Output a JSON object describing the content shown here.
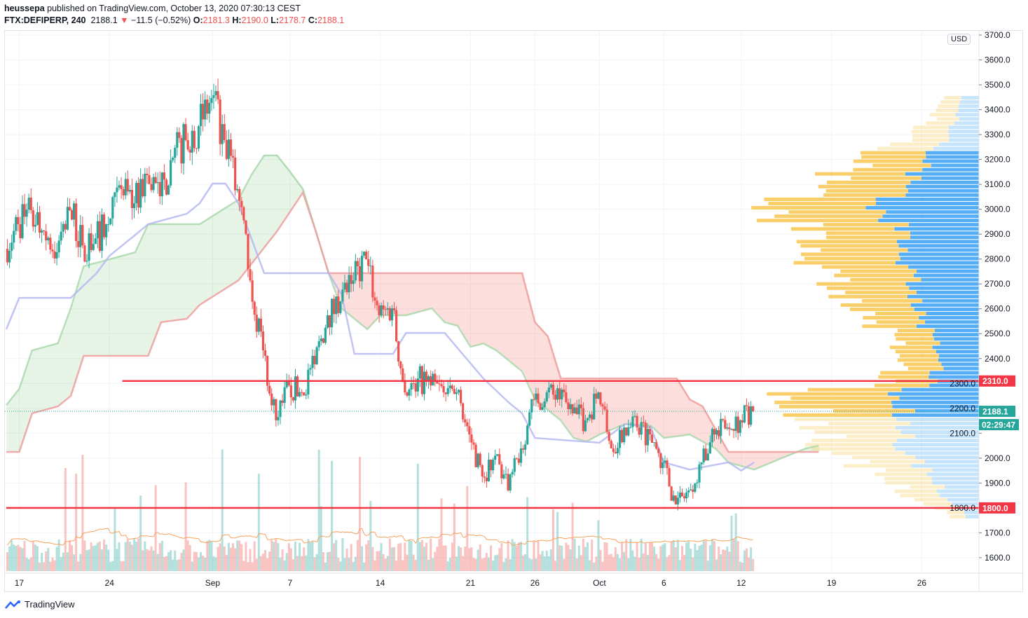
{
  "header": {
    "author": "heussepa",
    "published": "published on TradingView.com, October 13, 2020 07:30:13 CEST",
    "symbol": "FTX:DEFIPERP, 240",
    "last": "2188.1",
    "change": "−11.5 (−0.52%)",
    "o_label": "O:",
    "o": "2181.3",
    "h_label": "H:",
    "h": "2190.0",
    "l_label": "L:",
    "l": "2178.7",
    "c_label": "C:",
    "c": "2188.1"
  },
  "footer": {
    "brand": "TradingView"
  },
  "chart_data": {
    "type": "candlestick",
    "interval": "240",
    "currency": "USD",
    "ylim": [
      1550,
      3720
    ],
    "yticks": [
      1600,
      1700,
      1800,
      1900,
      2000,
      2100,
      2200,
      2300,
      2400,
      2500,
      2600,
      2700,
      2800,
      2900,
      3000,
      3100,
      3200,
      3300,
      3400,
      3500,
      3600,
      3700
    ],
    "xticks": [
      {
        "date": "2020-08-17",
        "label": "17"
      },
      {
        "date": "2020-08-24",
        "label": "24"
      },
      {
        "date": "2020-09-01",
        "label": "Sep"
      },
      {
        "date": "2020-09-07",
        "label": "7"
      },
      {
        "date": "2020-09-14",
        "label": "14"
      },
      {
        "date": "2020-09-21",
        "label": "21"
      },
      {
        "date": "2020-09-26",
        "label": "26"
      },
      {
        "date": "2020-10-01",
        "label": "Oct"
      },
      {
        "date": "2020-10-06",
        "label": "6"
      },
      {
        "date": "2020-10-12",
        "label": "12"
      },
      {
        "date": "2020-10-19",
        "label": "19"
      },
      {
        "date": "2020-10-26",
        "label": "26"
      }
    ],
    "daily_close": [
      [
        "2020-08-16",
        2841
      ],
      [
        "2020-08-17",
        2940
      ],
      [
        "2020-08-18",
        2996
      ],
      [
        "2020-08-19",
        2912
      ],
      [
        "2020-08-20",
        2827
      ],
      [
        "2020-08-21",
        2996
      ],
      [
        "2020-08-22",
        2855
      ],
      [
        "2020-08-23",
        2883
      ],
      [
        "2020-08-24",
        2940
      ],
      [
        "2020-08-25",
        3081
      ],
      [
        "2020-08-26",
        3024
      ],
      [
        "2020-08-27",
        3137
      ],
      [
        "2020-08-28",
        3052
      ],
      [
        "2020-08-29",
        3207
      ],
      [
        "2020-08-30",
        3278
      ],
      [
        "2020-08-31",
        3334
      ],
      [
        "2020-09-01",
        3447
      ],
      [
        "2020-09-02",
        3278
      ],
      [
        "2020-09-03",
        3081
      ],
      [
        "2020-09-04",
        2714
      ],
      [
        "2020-09-05",
        2433
      ],
      [
        "2020-09-06",
        2152
      ],
      [
        "2020-09-07",
        2292
      ],
      [
        "2020-09-08",
        2264
      ],
      [
        "2020-09-09",
        2377
      ],
      [
        "2020-09-10",
        2574
      ],
      [
        "2020-09-11",
        2630
      ],
      [
        "2020-09-12",
        2714
      ],
      [
        "2020-09-13",
        2799
      ],
      [
        "2020-09-14",
        2574
      ],
      [
        "2020-09-15",
        2602
      ],
      [
        "2020-09-16",
        2264
      ],
      [
        "2020-09-17",
        2320
      ],
      [
        "2020-09-18",
        2292
      ],
      [
        "2020-09-19",
        2264
      ],
      [
        "2020-09-20",
        2264
      ],
      [
        "2020-09-21",
        2095
      ],
      [
        "2020-09-22",
        1926
      ],
      [
        "2020-09-23",
        2010
      ],
      [
        "2020-09-24",
        1870
      ],
      [
        "2020-09-25",
        2039
      ],
      [
        "2020-09-26",
        2236
      ],
      [
        "2020-09-27",
        2264
      ],
      [
        "2020-09-28",
        2236
      ],
      [
        "2020-09-29",
        2180
      ],
      [
        "2020-09-30",
        2152
      ],
      [
        "2020-10-01",
        2264
      ],
      [
        "2020-10-02",
        2039
      ],
      [
        "2020-10-03",
        2123
      ],
      [
        "2020-10-04",
        2123
      ],
      [
        "2020-10-05",
        2095
      ],
      [
        "2020-10-06",
        1983
      ],
      [
        "2020-10-07",
        1814
      ],
      [
        "2020-10-08",
        1870
      ],
      [
        "2020-10-09",
        1983
      ],
      [
        "2020-10-10",
        2095
      ],
      [
        "2020-10-11",
        2123
      ],
      [
        "2020-10-12",
        2152
      ],
      [
        "2020-10-13",
        2188.1
      ]
    ],
    "ichimoku": {
      "base_line": [
        [
          "2020-08-16",
          2518
        ],
        [
          "2020-08-17",
          2644
        ],
        [
          "2020-08-21",
          2644
        ],
        [
          "2020-08-23",
          2743
        ],
        [
          "2020-08-24",
          2813
        ],
        [
          "2020-08-26",
          2897
        ],
        [
          "2020-08-27",
          2940
        ],
        [
          "2020-08-30",
          2982
        ],
        [
          "2020-08-31",
          3024
        ],
        [
          "2020-09-01",
          3103
        ],
        [
          "2020-09-02",
          3103
        ],
        [
          "2020-09-03",
          3024
        ],
        [
          "2020-09-05",
          2743
        ],
        [
          "2020-09-10",
          2743
        ],
        [
          "2020-09-11",
          2658
        ],
        [
          "2020-09-12",
          2419
        ],
        [
          "2020-09-15",
          2419
        ],
        [
          "2020-09-16",
          2503
        ],
        [
          "2020-09-19",
          2503
        ],
        [
          "2020-09-22",
          2320
        ],
        [
          "2020-09-24",
          2222
        ],
        [
          "2020-09-25",
          2180
        ],
        [
          "2020-09-26",
          2081
        ],
        [
          "2020-10-01",
          2062
        ],
        [
          "2020-10-03",
          2137
        ],
        [
          "2020-10-05",
          2123
        ],
        [
          "2020-10-06",
          1983
        ],
        [
          "2020-10-08",
          1954
        ],
        [
          "2020-10-11",
          1983
        ],
        [
          "2020-10-12",
          1950
        ],
        [
          "2020-10-13",
          1983
        ]
      ],
      "span_a": [
        [
          "2020-08-16",
          2213
        ],
        [
          "2020-08-17",
          2278
        ],
        [
          "2020-08-18",
          2433
        ],
        [
          "2020-08-19",
          2447
        ],
        [
          "2020-08-20",
          2461
        ],
        [
          "2020-08-21",
          2602
        ],
        [
          "2020-08-22",
          2771
        ],
        [
          "2020-08-24",
          2799
        ],
        [
          "2020-08-26",
          2827
        ],
        [
          "2020-08-27",
          2940
        ],
        [
          "2020-08-31",
          2940
        ],
        [
          "2020-09-03",
          3038
        ],
        [
          "2020-09-04",
          3137
        ],
        [
          "2020-09-05",
          3216
        ],
        [
          "2020-09-06",
          3216
        ],
        [
          "2020-09-07",
          3151
        ],
        [
          "2020-09-08",
          3081
        ],
        [
          "2020-09-09",
          2912
        ],
        [
          "2020-09-10",
          2743
        ],
        [
          "2020-09-11",
          2602
        ],
        [
          "2020-09-13",
          2518
        ],
        [
          "2020-09-14",
          2574
        ],
        [
          "2020-09-16",
          2574
        ],
        [
          "2020-09-18",
          2602
        ],
        [
          "2020-09-19",
          2546
        ],
        [
          "2020-09-20",
          2532
        ],
        [
          "2020-09-21",
          2447
        ],
        [
          "2020-09-22",
          2461
        ],
        [
          "2020-09-23",
          2433
        ],
        [
          "2020-09-25",
          2349
        ],
        [
          "2020-09-26",
          2236
        ],
        [
          "2020-09-28",
          2152
        ],
        [
          "2020-09-29",
          2081
        ],
        [
          "2020-09-30",
          2067
        ],
        [
          "2020-10-01",
          2095
        ],
        [
          "2020-10-03",
          2137
        ],
        [
          "2020-10-05",
          2130
        ],
        [
          "2020-10-06",
          2081
        ],
        [
          "2020-10-08",
          2095
        ],
        [
          "2020-10-10",
          2039
        ],
        [
          "2020-10-11",
          1983
        ],
        [
          "2020-10-13",
          1954
        ],
        [
          "2020-10-15",
          1997
        ],
        [
          "2020-10-17",
          2039
        ],
        [
          "2020-10-18",
          2050
        ]
      ],
      "span_b": [
        [
          "2020-08-16",
          2025
        ],
        [
          "2020-08-17",
          2025
        ],
        [
          "2020-08-18",
          2180
        ],
        [
          "2020-08-20",
          2208
        ],
        [
          "2020-08-21",
          2250
        ],
        [
          "2020-08-22",
          2411
        ],
        [
          "2020-08-27",
          2411
        ],
        [
          "2020-08-28",
          2546
        ],
        [
          "2020-08-30",
          2560
        ],
        [
          "2020-08-31",
          2616
        ],
        [
          "2020-09-03",
          2714
        ],
        [
          "2020-09-06",
          2912
        ],
        [
          "2020-09-08",
          3067
        ],
        [
          "2020-09-09",
          2912
        ],
        [
          "2020-09-10",
          2743
        ],
        [
          "2020-09-25",
          2743
        ],
        [
          "2020-09-26",
          2546
        ],
        [
          "2020-09-27",
          2489
        ],
        [
          "2020-09-28",
          2320
        ],
        [
          "2020-10-07",
          2320
        ],
        [
          "2020-10-08",
          2236
        ],
        [
          "2020-10-09",
          2208
        ],
        [
          "2020-10-11",
          2025
        ],
        [
          "2020-10-18",
          2025
        ]
      ]
    },
    "horizontal_lines": [
      {
        "price": 2310.0,
        "label": "2310.0",
        "start": "2020-08-25"
      },
      {
        "price": 1800.0,
        "label": "1800.0",
        "start": "2020-08-16"
      }
    ],
    "last_price": {
      "value": 2188.1,
      "label": "2188.1",
      "countdown": "02:29:47"
    },
    "volume_profile": {
      "value_area": [
        2170,
        3230
      ],
      "rows": [
        [
          1750,
          0.1,
          0.45
        ],
        [
          1850,
          0.33,
          0.5
        ],
        [
          1950,
          0.55,
          0.5
        ],
        [
          2050,
          0.72,
          0.5
        ],
        [
          2150,
          0.8,
          0.45
        ],
        [
          2250,
          0.95,
          0.42
        ],
        [
          2310,
          0.45,
          0.5
        ],
        [
          2400,
          0.37,
          0.5
        ],
        [
          2500,
          0.43,
          0.55
        ],
        [
          2600,
          0.63,
          0.5
        ],
        [
          2700,
          0.73,
          0.45
        ],
        [
          2800,
          0.8,
          0.45
        ],
        [
          2900,
          0.77,
          0.45
        ],
        [
          2950,
          0.93,
          0.45
        ],
        [
          3000,
          1.0,
          0.5
        ],
        [
          3100,
          0.82,
          0.45
        ],
        [
          3200,
          0.57,
          0.45
        ],
        [
          3300,
          0.3,
          0.45
        ],
        [
          3450,
          0.17,
          0.5
        ]
      ]
    },
    "colors": {
      "up": "#26a69a",
      "down": "#ef5350",
      "span_a": "#a5d6a7",
      "span_b": "#ef9a9a",
      "base_line": "#b2b5f0",
      "level": "#f23645",
      "vp_up": "#42a5f5",
      "vp_down": "#f9c74f",
      "volume_ma": "#f7a35c"
    }
  }
}
